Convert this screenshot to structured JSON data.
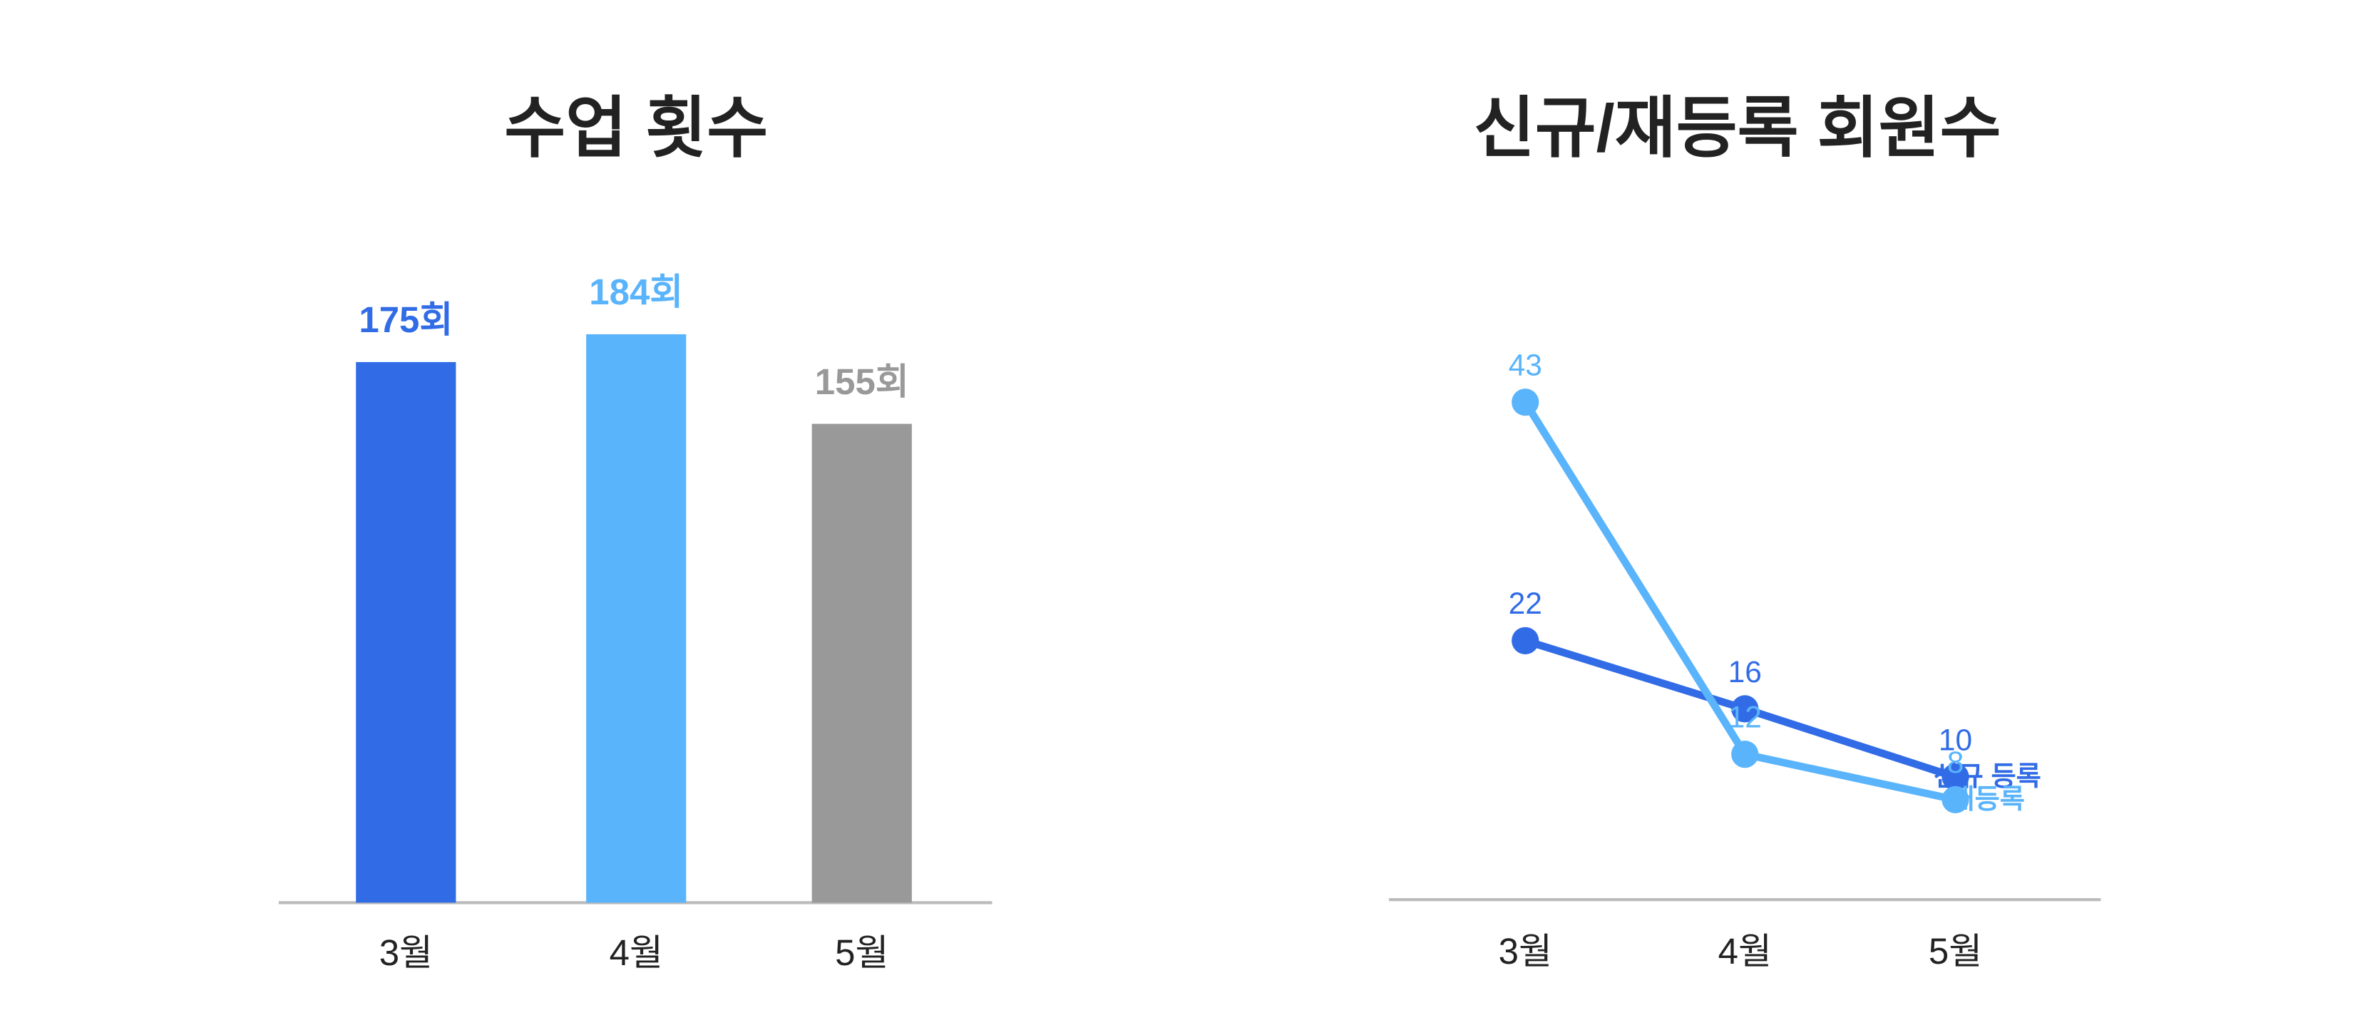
{
  "chart_data": [
    {
      "type": "bar",
      "title": "수업 횟수",
      "categories": [
        "3월",
        "4월",
        "5월"
      ],
      "values": [
        175,
        184,
        155
      ],
      "value_labels": [
        "175회",
        "184회",
        "155회"
      ],
      "colors": [
        "#316ce6",
        "#5ab4fb",
        "#999999"
      ]
    },
    {
      "type": "line",
      "title": "신규/재등록 회원수",
      "categories": [
        "3월",
        "4월",
        "5월"
      ],
      "series": [
        {
          "name": "신규 등록",
          "color": "#316ce6",
          "values": [
            22,
            16,
            10
          ]
        },
        {
          "name": "재등록",
          "color": "#5ab4fb",
          "values": [
            43,
            12,
            8
          ]
        }
      ]
    }
  ]
}
